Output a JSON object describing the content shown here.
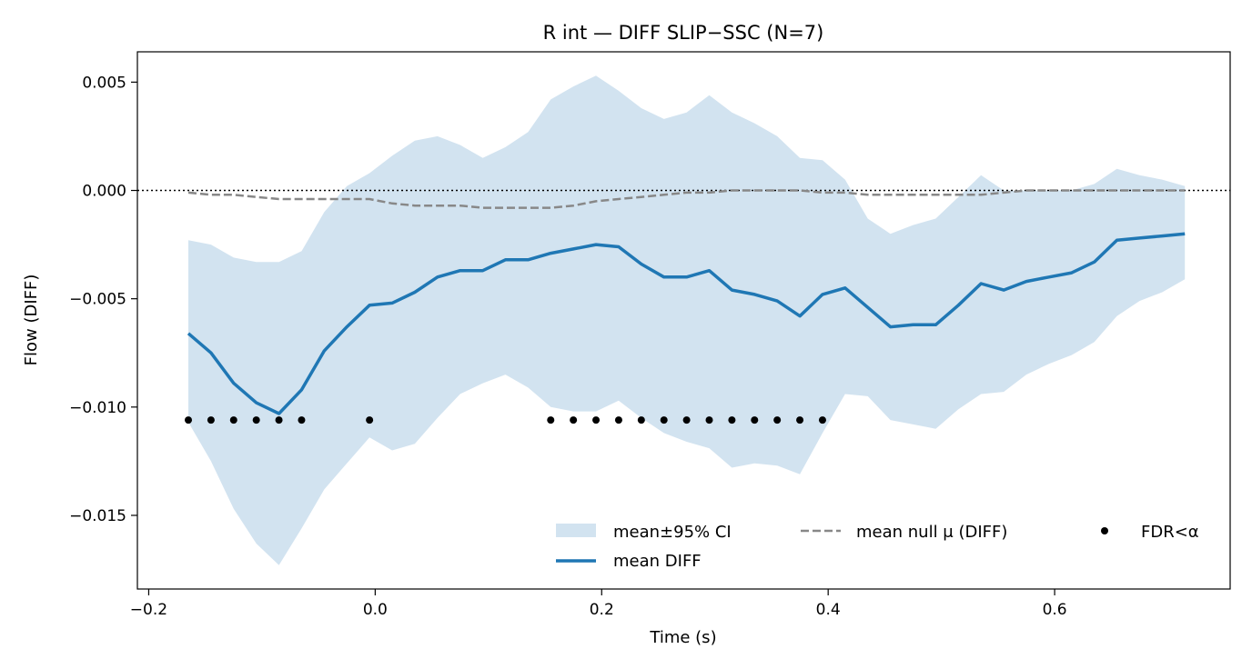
{
  "chart_data": {
    "type": "line",
    "title": "R int — DIFF SLIP−SSC (N=7)",
    "xlabel": "Time (s)",
    "ylabel": "Flow (DIFF)",
    "xlim": [
      -0.21,
      0.755
    ],
    "ylim": [
      -0.0184,
      0.0064
    ],
    "x_ticks": [
      -0.2,
      0.0,
      0.2,
      0.4,
      0.6
    ],
    "x_tick_labels": [
      "−0.2",
      "0.0",
      "0.2",
      "0.4",
      "0.6"
    ],
    "y_ticks": [
      0.005,
      0.0,
      -0.005,
      -0.01,
      -0.015
    ],
    "y_tick_labels": [
      "0.005",
      "0.000",
      "−0.005",
      "−0.010",
      "−0.015"
    ],
    "zero_line": true,
    "grid": false,
    "legend_position": "lower-right",
    "x": [
      -0.165,
      -0.145,
      -0.125,
      -0.105,
      -0.085,
      -0.065,
      -0.045,
      -0.025,
      -0.005,
      0.015,
      0.035,
      0.055,
      0.075,
      0.095,
      0.115,
      0.135,
      0.155,
      0.175,
      0.195,
      0.215,
      0.235,
      0.255,
      0.275,
      0.295,
      0.315,
      0.335,
      0.355,
      0.375,
      0.395,
      0.415,
      0.435,
      0.455,
      0.475,
      0.495,
      0.515,
      0.535,
      0.555,
      0.575,
      0.595,
      0.615,
      0.635,
      0.655,
      0.675,
      0.695,
      0.715
    ],
    "series": [
      {
        "name": "mean DIFF",
        "color": "#1f77b4",
        "values": [
          -0.0066,
          -0.0075,
          -0.0089,
          -0.0098,
          -0.0103,
          -0.0092,
          -0.0074,
          -0.0063,
          -0.0053,
          -0.0052,
          -0.0047,
          -0.004,
          -0.0037,
          -0.0037,
          -0.0032,
          -0.0032,
          -0.0029,
          -0.0027,
          -0.0025,
          -0.0026,
          -0.0034,
          -0.004,
          -0.004,
          -0.0037,
          -0.0046,
          -0.0048,
          -0.0051,
          -0.0058,
          -0.0048,
          -0.0045,
          -0.0054,
          -0.0063,
          -0.0062,
          -0.0062,
          -0.0053,
          -0.0043,
          -0.0046,
          -0.0042,
          -0.004,
          -0.0038,
          -0.0033,
          -0.0023,
          -0.0022,
          -0.0021,
          -0.002
        ]
      },
      {
        "name": "mean null μ (DIFF)",
        "color": "#888888",
        "values": [
          -0.0001,
          -0.0002,
          -0.0002,
          -0.0003,
          -0.0004,
          -0.0004,
          -0.0004,
          -0.0004,
          -0.0004,
          -0.0006,
          -0.0007,
          -0.0007,
          -0.0007,
          -0.0008,
          -0.0008,
          -0.0008,
          -0.0008,
          -0.0007,
          -0.0005,
          -0.0004,
          -0.0003,
          -0.0002,
          -0.0001,
          -0.0001,
          0.0,
          0.0,
          0.0,
          0.0,
          -0.0001,
          -0.0001,
          -0.0002,
          -0.0002,
          -0.0002,
          -0.0002,
          -0.0002,
          -0.0002,
          -0.0001,
          0.0,
          0.0,
          0.0,
          0.0,
          0.0,
          0.0,
          0.0,
          0.0
        ]
      }
    ],
    "ci_band": {
      "name": "mean±95% CI",
      "color": "#d2e3f0",
      "upper": [
        -0.0023,
        -0.0025,
        -0.0031,
        -0.0033,
        -0.0033,
        -0.0028,
        -0.001,
        0.0002,
        0.0008,
        0.0016,
        0.0023,
        0.0025,
        0.0021,
        0.0015,
        0.002,
        0.0027,
        0.0042,
        0.0048,
        0.0053,
        0.0046,
        0.0038,
        0.0033,
        0.0036,
        0.0044,
        0.0036,
        0.0031,
        0.0025,
        0.0015,
        0.0014,
        0.0005,
        -0.0013,
        -0.002,
        -0.0016,
        -0.0013,
        -0.0003,
        0.0007,
        0.0,
        0.0,
        0.0,
        0.0,
        0.0003,
        0.001,
        0.0007,
        0.0005,
        0.0002
      ],
      "lower": [
        -0.0107,
        -0.0125,
        -0.0147,
        -0.0163,
        -0.0173,
        -0.0156,
        -0.0138,
        -0.0126,
        -0.0114,
        -0.012,
        -0.0117,
        -0.0105,
        -0.0094,
        -0.0089,
        -0.0085,
        -0.0091,
        -0.01,
        -0.0102,
        -0.0102,
        -0.0097,
        -0.0105,
        -0.0112,
        -0.0116,
        -0.0119,
        -0.0128,
        -0.0126,
        -0.0127,
        -0.0131,
        -0.0112,
        -0.0094,
        -0.0095,
        -0.0106,
        -0.0108,
        -0.011,
        -0.0101,
        -0.0094,
        -0.0093,
        -0.0085,
        -0.008,
        -0.0076,
        -0.007,
        -0.0058,
        -0.0051,
        -0.0047,
        -0.0041
      ]
    },
    "significant": {
      "name": "FDR<α",
      "color": "#000000",
      "y": -0.0106,
      "x": [
        -0.165,
        -0.145,
        -0.125,
        -0.105,
        -0.085,
        -0.065,
        -0.005,
        0.155,
        0.175,
        0.195,
        0.215,
        0.235,
        0.255,
        0.275,
        0.295,
        0.315,
        0.335,
        0.355,
        0.375,
        0.395
      ]
    }
  }
}
